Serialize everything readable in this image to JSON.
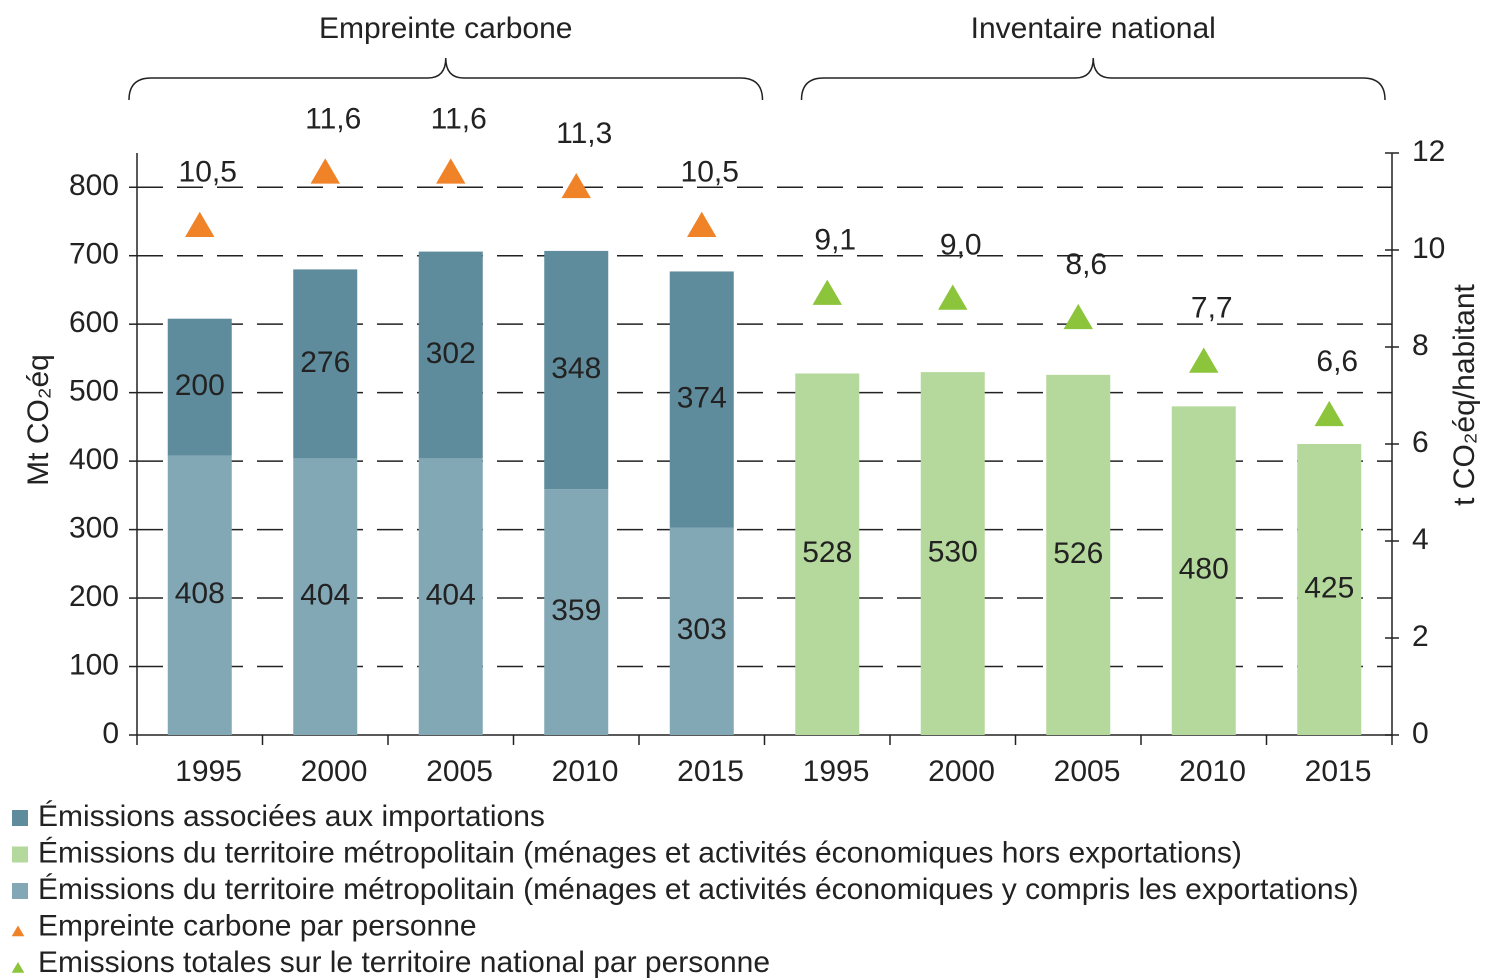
{
  "chart_data": {
    "type": "bar",
    "groups": [
      "Empreinte carbone",
      "Inventaire national"
    ],
    "categories": [
      "1995",
      "2000",
      "2005",
      "2010",
      "2015",
      "1995",
      "2000",
      "2005",
      "2010",
      "2015"
    ],
    "y_label": "Mt CO₂éq",
    "y2_label": "t CO₂éq/habitant",
    "ylim": [
      0,
      850
    ],
    "yticks": [
      0,
      100,
      200,
      300,
      400,
      500,
      600,
      700,
      800
    ],
    "y2lim": [
      0,
      12
    ],
    "y2ticks": [
      0,
      2,
      4,
      6,
      8,
      10,
      12
    ],
    "grid": true,
    "series": [
      {
        "name": "Émissions associées aux importations",
        "color": "#5f8c9c",
        "marker": "square",
        "values": [
          200,
          276,
          302,
          348,
          374,
          null,
          null,
          null,
          null,
          null
        ]
      },
      {
        "name": "Émissions du territoire métropolitain (ménages et activités économiques hors exportations)",
        "color": "#b5d99c",
        "marker": "square",
        "values": [
          null,
          null,
          null,
          null,
          null,
          528,
          530,
          526,
          480,
          425
        ]
      },
      {
        "name": "Émissions du territoire métropolitain (ménages et activités économiques y compris les exportations)",
        "color": "#82a7b5",
        "marker": "square",
        "values": [
          408,
          404,
          404,
          359,
          303,
          null,
          null,
          null,
          null,
          null
        ]
      },
      {
        "name": "Empreinte carbone par personne",
        "color": "#f08228",
        "marker": "triangle",
        "axis": "y2",
        "values": [
          10.5,
          11.6,
          11.6,
          11.3,
          10.5,
          null,
          null,
          null,
          null,
          null
        ],
        "value_labels": [
          "10,5",
          "11,6",
          "11,6",
          "11,3",
          "10,5",
          null,
          null,
          null,
          null,
          null
        ]
      },
      {
        "name": "Emissions totales sur le territoire national par personne",
        "color": "#8cc43c",
        "marker": "triangle",
        "axis": "y2",
        "values": [
          null,
          null,
          null,
          null,
          null,
          9.1,
          9.0,
          8.6,
          7.7,
          6.6
        ],
        "value_labels": [
          null,
          null,
          null,
          null,
          null,
          "9,1",
          "9,0",
          "8,6",
          "7,7",
          "6,6"
        ]
      }
    ]
  }
}
